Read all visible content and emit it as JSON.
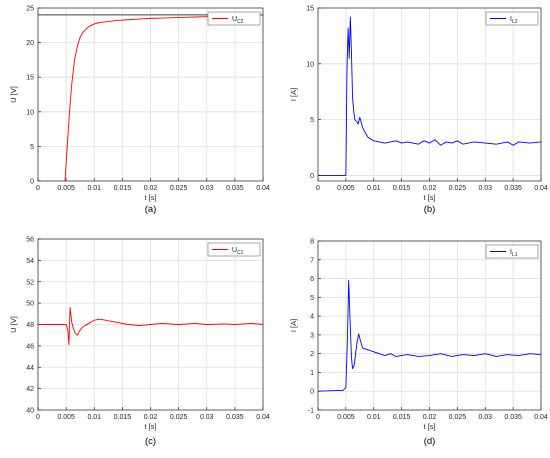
{
  "chart_data": [
    {
      "type": "line",
      "panel_caption": "(a)",
      "xlabel": "t [s]",
      "ylabel": "U [V]",
      "xlim": [
        0,
        0.04
      ],
      "ylim": [
        0,
        25
      ],
      "xticks": [
        "0",
        "0.005",
        "0.01",
        "0.015",
        "0.02",
        "0.025",
        "0.03",
        "0.035",
        "0.04"
      ],
      "yticks": [
        "0",
        "5",
        "10",
        "15",
        "20",
        "25"
      ],
      "grid": true,
      "legend": "top-right",
      "reference_line": 24,
      "series": [
        {
          "name_main": "U",
          "name_sub": "C2",
          "color": "#ff0000",
          "x": [
            0.0048,
            0.0052,
            0.0056,
            0.006,
            0.0065,
            0.007,
            0.0075,
            0.008,
            0.009,
            0.01,
            0.011,
            0.012,
            0.014,
            0.016,
            0.018,
            0.02,
            0.022,
            0.024,
            0.026,
            0.028,
            0.03,
            0.032,
            0.0335
          ],
          "y": [
            0,
            5,
            10,
            14,
            17.5,
            19.5,
            20.8,
            21.5,
            22.3,
            22.7,
            22.9,
            23.0,
            23.2,
            23.3,
            23.4,
            23.5,
            23.55,
            23.6,
            23.65,
            23.7,
            23.75,
            23.8,
            23.85
          ]
        }
      ]
    },
    {
      "type": "line",
      "panel_caption": "(b)",
      "xlabel": "t [s]",
      "ylabel": "I [A]",
      "xlim": [
        0,
        0.04
      ],
      "ylim": [
        -0.5,
        15
      ],
      "xticks": [
        "0",
        "0.005",
        "0.01",
        "0.015",
        "0.02",
        "0.025",
        "0.03",
        "0.035",
        "0.04"
      ],
      "yticks": [
        "0",
        "5",
        "10",
        "15"
      ],
      "grid": true,
      "legend": "top-right",
      "series": [
        {
          "name_main": "I",
          "name_sub": "L2",
          "color": "#0000ff",
          "x": [
            0,
            0.005,
            0.0052,
            0.0054,
            0.0056,
            0.0058,
            0.006,
            0.0062,
            0.0064,
            0.0066,
            0.007,
            0.0072,
            0.0075,
            0.008,
            0.0085,
            0.009,
            0.01,
            0.011,
            0.012,
            0.014,
            0.015,
            0.016,
            0.018,
            0.019,
            0.02,
            0.021,
            0.022,
            0.023,
            0.024,
            0.025,
            0.026,
            0.028,
            0.03,
            0.032,
            0.034,
            0.035,
            0.036,
            0.038,
            0.04
          ],
          "y": [
            0,
            0,
            9.5,
            13.2,
            10.5,
            14.2,
            11.0,
            7.0,
            5.8,
            5.0,
            4.8,
            4.6,
            5.2,
            4.3,
            3.8,
            3.4,
            3.1,
            3.0,
            2.9,
            3.1,
            2.9,
            3.0,
            2.8,
            3.1,
            2.9,
            3.2,
            2.7,
            3.0,
            2.9,
            3.1,
            2.8,
            3.0,
            2.9,
            2.8,
            3.0,
            2.7,
            3.0,
            2.9,
            3.0
          ]
        }
      ]
    },
    {
      "type": "line",
      "panel_caption": "(c)",
      "xlabel": "t [s]",
      "ylabel": "U [V]",
      "xlim": [
        0,
        0.04
      ],
      "ylim": [
        40,
        56
      ],
      "xticks": [
        "0",
        "0.005",
        "0.01",
        "0.015",
        "0.02",
        "0.025",
        "0.03",
        "0.035",
        "0.04"
      ],
      "yticks": [
        "40",
        "42",
        "44",
        "46",
        "48",
        "50",
        "52",
        "54",
        "56"
      ],
      "grid": true,
      "legend": "top-right",
      "series": [
        {
          "name_main": "U",
          "name_sub": "C1",
          "color": "#ff0000",
          "x": [
            0,
            0.0045,
            0.005,
            0.0053,
            0.0055,
            0.0057,
            0.006,
            0.0063,
            0.0066,
            0.007,
            0.0075,
            0.008,
            0.009,
            0.01,
            0.011,
            0.012,
            0.013,
            0.014,
            0.016,
            0.018,
            0.02,
            0.022,
            0.025,
            0.028,
            0.03,
            0.033,
            0.035,
            0.038,
            0.04
          ],
          "y": [
            48,
            48,
            48,
            47.5,
            46.1,
            49.6,
            48.2,
            47.6,
            47.2,
            47.0,
            47.5,
            47.8,
            48.1,
            48.4,
            48.5,
            48.4,
            48.3,
            48.2,
            48.0,
            47.9,
            48.0,
            48.1,
            48.0,
            48.1,
            48.0,
            48.05,
            48.0,
            48.1,
            48.0
          ]
        }
      ]
    },
    {
      "type": "line",
      "panel_caption": "(d)",
      "xlabel": "t [s]",
      "ylabel": "I [A]",
      "xlim": [
        0,
        0.04
      ],
      "ylim": [
        -1,
        8
      ],
      "xticks": [
        "0",
        "0.005",
        "0.01",
        "0.015",
        "0.02",
        "0.025",
        "0.03",
        "0.035",
        "0.04"
      ],
      "yticks": [
        "-1",
        "0",
        "1",
        "2",
        "3",
        "4",
        "5",
        "6",
        "7",
        "8"
      ],
      "grid": true,
      "legend": "top-right",
      "series": [
        {
          "name_main": "I",
          "name_sub": "L1",
          "color": "#0000ff",
          "x": [
            0,
            0.0045,
            0.005,
            0.0053,
            0.0055,
            0.0057,
            0.006,
            0.0062,
            0.0065,
            0.007,
            0.0073,
            0.0076,
            0.008,
            0.009,
            0.01,
            0.011,
            0.012,
            0.013,
            0.014,
            0.015,
            0.016,
            0.018,
            0.02,
            0.022,
            0.024,
            0.026,
            0.028,
            0.03,
            0.032,
            0.034,
            0.036,
            0.038,
            0.04
          ],
          "y": [
            0,
            0.05,
            0.2,
            3.0,
            5.9,
            4.2,
            1.8,
            1.2,
            1.4,
            2.6,
            3.05,
            2.7,
            2.3,
            2.2,
            2.1,
            2.0,
            1.9,
            2.0,
            1.85,
            1.9,
            1.95,
            1.85,
            1.9,
            2.0,
            1.85,
            1.95,
            1.9,
            2.0,
            1.85,
            1.95,
            1.9,
            2.0,
            1.95
          ]
        }
      ]
    }
  ]
}
